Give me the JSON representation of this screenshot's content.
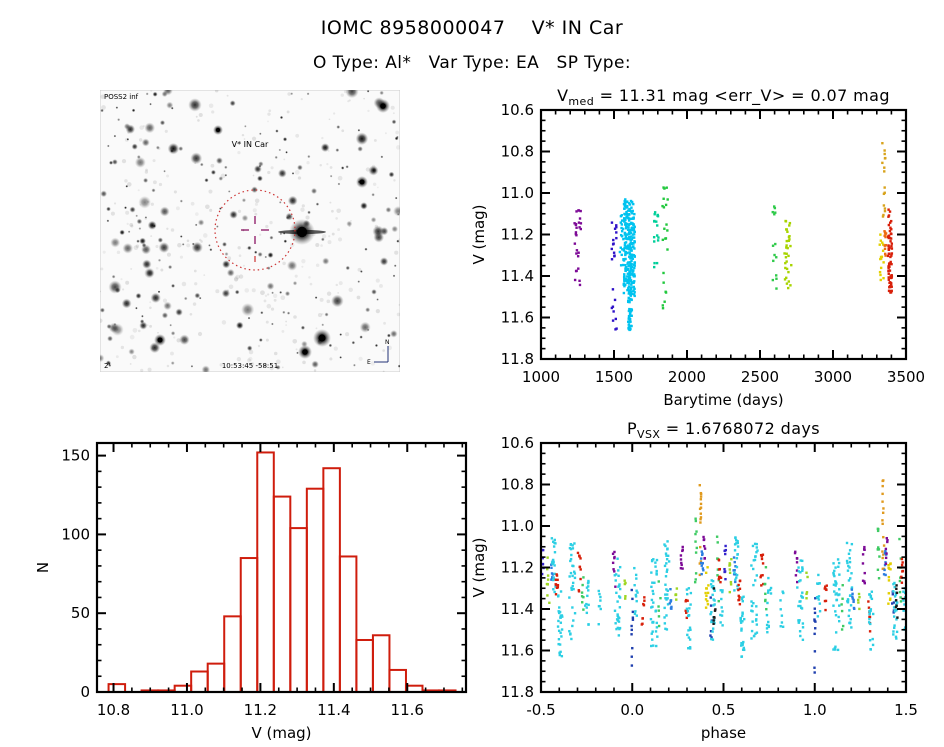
{
  "header": {
    "title": "IOMC 8958000047    V* IN Car",
    "subtitle": "O Type: Al*   Var Type: EA   SP Type:"
  },
  "finder": {
    "survey_label": "POSS2 inf",
    "target_label": "V* IN Car",
    "bottom_label": "10:53:45 -58:51",
    "corner_label": "2'",
    "compass_north": "N",
    "compass_east": "E",
    "circle_color": "#cc3333",
    "label_color": "#cc3333",
    "annotation_color": "#223377",
    "crosshair_color": "#993377"
  },
  "chart_data": [
    {
      "id": "lightcurve",
      "type": "scatter",
      "title_parts": [
        {
          "t": "V"
        },
        {
          "t": "med",
          "sub": true
        },
        {
          "t": " = 11.31 mag <err_V> = 0.07 mag"
        }
      ],
      "xlabel": "Barytime (days)",
      "ylabel": "V (mag)",
      "xlim": [
        1000,
        3500
      ],
      "ylim_top": 10.6,
      "ylim_bottom": 11.8,
      "xticks": {
        "values": [
          1000,
          1500,
          2000,
          2500,
          3000,
          3500
        ],
        "labels": [
          "1000",
          "1500",
          "2000",
          "2500",
          "3000",
          "3500"
        ],
        "minor": 100
      },
      "yticks": {
        "values": [
          10.6,
          10.8,
          11.0,
          11.2,
          11.4,
          11.6,
          11.8
        ],
        "labels": [
          "10.6",
          "10.8",
          "11.0",
          "11.2",
          "11.4",
          "11.6",
          "11.8"
        ],
        "minor": 0.05
      },
      "grid": false,
      "legend": "none",
      "clusters": [
        {
          "c": "#7d0a96",
          "x": 1255,
          "xs": 25,
          "seg": [
            [
              11.08,
              11.22,
              16
            ],
            [
              11.24,
              11.32,
              5
            ],
            [
              11.34,
              11.46,
              6
            ]
          ]
        },
        {
          "c": "#2f12c8",
          "x": 1500,
          "xs": 18,
          "seg": [
            [
              11.14,
              11.32,
              14
            ],
            [
              11.44,
              11.68,
              9
            ]
          ]
        },
        {
          "c": "#00c3ef",
          "x": 1560,
          "xs": 20,
          "seg": [
            [
              11.1,
              11.35,
              25
            ]
          ]
        },
        {
          "c": "#00c3ef",
          "x": 1605,
          "xs": 38,
          "seg": [
            [
              11.03,
              11.3,
              150
            ],
            [
              11.3,
              11.5,
              120
            ]
          ]
        },
        {
          "c": "#00c3ef",
          "x": 1610,
          "xs": 14,
          "seg": [
            [
              11.5,
              11.66,
              40
            ]
          ]
        },
        {
          "c": "#00cf9a",
          "x": 1790,
          "xs": 15,
          "seg": [
            [
              11.07,
              11.24,
              14
            ],
            [
              11.3,
              11.36,
              3
            ]
          ]
        },
        {
          "c": "#22c83e",
          "x": 1850,
          "xs": 18,
          "seg": [
            [
              10.97,
              11.08,
              8
            ],
            [
              11.13,
              11.28,
              7
            ],
            [
              11.33,
              11.57,
              7
            ]
          ]
        },
        {
          "c": "#2fca4a",
          "x": 2600,
          "xs": 15,
          "seg": [
            [
              11.03,
              11.13,
              5
            ],
            [
              11.19,
              11.33,
              5
            ],
            [
              11.37,
              11.47,
              4
            ]
          ]
        },
        {
          "c": "#a8d400",
          "x": 2690,
          "xs": 25,
          "seg": [
            [
              11.13,
              11.3,
              18
            ],
            [
              11.3,
              11.46,
              14
            ]
          ]
        },
        {
          "c": "#d8a31c",
          "x": 3345,
          "xs": 14,
          "seg": [
            [
              10.75,
              10.92,
              8
            ],
            [
              10.96,
              11.12,
              8
            ]
          ]
        },
        {
          "c": "#e3d000",
          "x": 3333,
          "xs": 14,
          "seg": [
            [
              11.18,
              11.42,
              16
            ]
          ]
        },
        {
          "c": "#ed6a10",
          "x": 3357,
          "xs": 9,
          "seg": [
            [
              11.18,
              11.33,
              12
            ]
          ]
        },
        {
          "c": "#d8200a",
          "x": 3390,
          "xs": 14,
          "seg": [
            [
              11.08,
              11.2,
              12
            ],
            [
              11.2,
              11.48,
              55
            ]
          ]
        }
      ]
    },
    {
      "id": "histogram",
      "type": "bar",
      "xlabel": "V (mag)",
      "ylabel": "N",
      "xlim": [
        10.755,
        11.76
      ],
      "ylim": [
        0,
        158
      ],
      "xticks": {
        "values": [
          10.8,
          11.0,
          11.2,
          11.4,
          11.6
        ],
        "labels": [
          "10.8",
          "11.0",
          "11.2",
          "11.4",
          "11.6"
        ],
        "minor": 0.05
      },
      "yticks": {
        "values": [
          0,
          50,
          100,
          150
        ],
        "labels": [
          "0",
          "50",
          "100",
          "150"
        ],
        "minor": 10
      },
      "grid": false,
      "bin_width": 0.045,
      "bin_centers": [
        10.809,
        10.854,
        10.899,
        10.944,
        10.989,
        11.034,
        11.079,
        11.124,
        11.169,
        11.214,
        11.259,
        11.304,
        11.349,
        11.394,
        11.439,
        11.484,
        11.529,
        11.574,
        11.619,
        11.664,
        11.709
      ],
      "counts": [
        5,
        0,
        1,
        1,
        4,
        13,
        18,
        48,
        85,
        152,
        124,
        104,
        129,
        142,
        86,
        33,
        36,
        14,
        4,
        1,
        1
      ],
      "color": "#cf1d0d"
    },
    {
      "id": "phase",
      "type": "scatter",
      "title_parts": [
        {
          "t": "P"
        },
        {
          "t": "VSX",
          "sub": true
        },
        {
          "t": " = 1.6768072 days"
        }
      ],
      "xlabel": "phase",
      "ylabel": "V (mag)",
      "xlim": [
        -0.5,
        1.5
      ],
      "ylim_top": 10.6,
      "ylim_bottom": 11.8,
      "xticks": {
        "values": [
          -0.5,
          0.0,
          0.5,
          1.0,
          1.5
        ],
        "labels": [
          "-0.5",
          "0.0",
          "0.5",
          "1.0",
          "1.5"
        ],
        "minor": 0.1
      },
      "yticks": {
        "values": [
          10.6,
          10.8,
          11.0,
          11.2,
          11.4,
          11.6,
          11.8
        ],
        "labels": [
          "10.6",
          "10.8",
          "11.0",
          "11.2",
          "11.4",
          "11.6",
          "11.8"
        ],
        "minor": 0.05
      },
      "grid": false,
      "repeat_offset": 1.0,
      "clusters": [
        {
          "c": "#3222cc",
          "x": -0.49,
          "xs": 0.006,
          "seg": [
            [
              11.08,
              11.27,
              8
            ]
          ]
        },
        {
          "c": "#9fd622",
          "x": -0.46,
          "xs": 0.008,
          "seg": [
            [
              11.15,
              11.38,
              9
            ]
          ]
        },
        {
          "c": "#2b7de0",
          "x": -0.44,
          "xs": 0.007,
          "seg": [
            [
              11.15,
              11.28,
              8
            ]
          ]
        },
        {
          "c": "#2ccfe4",
          "x": -0.43,
          "xs": 0.012,
          "seg": [
            [
              11.05,
              11.35,
              20
            ]
          ]
        },
        {
          "c": "#d8200a",
          "x": -0.415,
          "xs": 0.008,
          "seg": [
            [
              11.23,
              11.38,
              10
            ]
          ]
        },
        {
          "c": "#2ccfe4",
          "x": -0.395,
          "xs": 0.012,
          "seg": [
            [
              11.3,
              11.63,
              26
            ]
          ]
        },
        {
          "c": "#2ccfe4",
          "x": -0.33,
          "xs": 0.018,
          "seg": [
            [
              11.08,
              11.55,
              32
            ]
          ]
        },
        {
          "c": "#d8200a",
          "x": -0.29,
          "xs": 0.008,
          "seg": [
            [
              11.12,
              11.32,
              10
            ]
          ]
        },
        {
          "c": "#3ecb63",
          "x": -0.27,
          "xs": 0.006,
          "seg": [
            [
              11.18,
              11.42,
              7
            ]
          ]
        },
        {
          "c": "#2ccfe4",
          "x": -0.25,
          "xs": 0.012,
          "seg": [
            [
              11.25,
              11.52,
              14
            ]
          ]
        },
        {
          "c": "#2ccfe4",
          "x": -0.18,
          "xs": 0.008,
          "seg": [
            [
              11.3,
              11.5,
              8
            ]
          ]
        },
        {
          "c": "#7d0a96",
          "x": -0.1,
          "xs": 0.008,
          "seg": [
            [
              11.12,
              11.3,
              8
            ]
          ]
        },
        {
          "c": "#2ccfe4",
          "x": -0.08,
          "xs": 0.016,
          "seg": [
            [
              11.15,
              11.55,
              30
            ]
          ]
        },
        {
          "c": "#9fd622",
          "x": -0.04,
          "xs": 0.006,
          "seg": [
            [
              11.22,
              11.35,
              5
            ]
          ]
        },
        {
          "c": "#1f3fae",
          "x": 0.0,
          "xs": 0.004,
          "seg": [
            [
              11.28,
              11.72,
              11
            ]
          ]
        },
        {
          "c": "#2ccfe4",
          "x": 0.02,
          "xs": 0.01,
          "seg": [
            [
              11.2,
              11.45,
              12
            ]
          ]
        },
        {
          "c": "#d8200a",
          "x": 0.06,
          "xs": 0.008,
          "seg": [
            [
              11.28,
              11.48,
              8
            ]
          ]
        },
        {
          "c": "#2ccfe4",
          "x": 0.12,
          "xs": 0.018,
          "seg": [
            [
              11.15,
              11.6,
              35
            ]
          ]
        },
        {
          "c": "#3ecb63",
          "x": 0.15,
          "xs": 0.006,
          "seg": [
            [
              11.25,
              11.5,
              6
            ]
          ]
        },
        {
          "c": "#2ccfe4",
          "x": 0.19,
          "xs": 0.014,
          "seg": [
            [
              11.05,
              11.5,
              30
            ]
          ]
        },
        {
          "c": "#2b7de0",
          "x": 0.21,
          "xs": 0.007,
          "seg": [
            [
              11.28,
              11.4,
              8
            ]
          ]
        },
        {
          "c": "#9fd622",
          "x": 0.24,
          "xs": 0.006,
          "seg": [
            [
              11.3,
              11.42,
              5
            ]
          ]
        },
        {
          "c": "#7d0a96",
          "x": 0.27,
          "xs": 0.007,
          "seg": [
            [
              11.1,
              11.28,
              9
            ]
          ]
        },
        {
          "c": "#d8200a",
          "x": 0.3,
          "xs": 0.007,
          "seg": [
            [
              11.35,
              11.52,
              7
            ]
          ]
        },
        {
          "c": "#2ccfe4",
          "x": 0.31,
          "xs": 0.012,
          "seg": [
            [
              11.3,
              11.6,
              20
            ]
          ]
        },
        {
          "c": "#3ecb63",
          "x": 0.35,
          "xs": 0.006,
          "seg": [
            [
              10.95,
              11.3,
              10
            ]
          ]
        },
        {
          "c": "#e09a1e",
          "x": 0.375,
          "xs": 0.005,
          "seg": [
            [
              10.78,
              11.25,
              16
            ]
          ]
        },
        {
          "c": "#2b7de0",
          "x": 0.385,
          "xs": 0.007,
          "seg": [
            [
              11.12,
              11.24,
              10
            ]
          ]
        },
        {
          "c": "#7d0a96",
          "x": 0.395,
          "xs": 0.006,
          "seg": [
            [
              11.05,
              11.2,
              7
            ]
          ]
        },
        {
          "c": "#e3cf00",
          "x": 0.41,
          "xs": 0.008,
          "seg": [
            [
              11.18,
              11.4,
              12
            ]
          ]
        },
        {
          "c": "#1f3fae",
          "x": 0.43,
          "xs": 0.006,
          "seg": [
            [
              11.3,
              11.55,
              6
            ]
          ]
        },
        {
          "c": "#2ccfe4",
          "x": 0.44,
          "xs": 0.012,
          "seg": [
            [
              11.25,
              11.55,
              25
            ]
          ]
        },
        {
          "c": "#1a1a1a",
          "x": 0.45,
          "xs": 0.006,
          "seg": [
            [
              11.28,
              11.5,
              7
            ]
          ]
        },
        {
          "c": "#3ecb63",
          "x": 0.47,
          "xs": 0.006,
          "seg": [
            [
              11.05,
              11.42,
              8
            ]
          ]
        },
        {
          "c": "#d8200a",
          "x": 0.48,
          "xs": 0.007,
          "seg": [
            [
              11.15,
              11.3,
              9
            ]
          ]
        },
        {
          "c": "#2ccfe4",
          "x": 0.49,
          "xs": 0.008,
          "seg": [
            [
              11.3,
              11.5,
              10
            ]
          ]
        }
      ]
    }
  ]
}
